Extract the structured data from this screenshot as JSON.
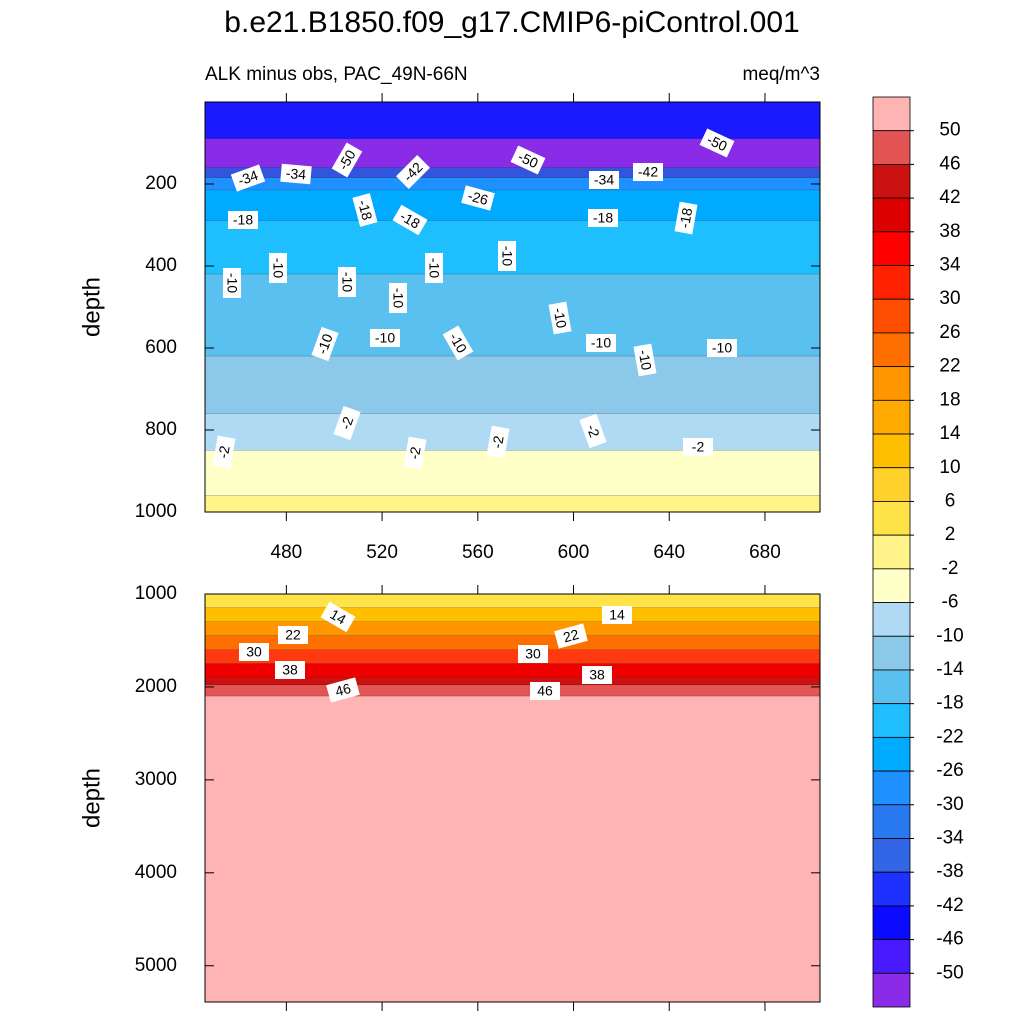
{
  "title": "b.e21.B1850.f09_g17.CMIP6-piControl.001",
  "chart_data": [
    {
      "type": "contour",
      "subtitle_left": "ALK minus obs, PAC_49N-66N",
      "subtitle_right": "meq/m^3",
      "ylabel": "depth",
      "xlim": [
        446,
        703
      ],
      "xticks": [
        480,
        520,
        560,
        600,
        640,
        680
      ],
      "x_tick_labels": true,
      "ylim": [
        1000,
        0
      ],
      "yticks": [
        200,
        400,
        600,
        800,
        1000
      ],
      "bands": [
        {
          "top": 0,
          "bottom": 90,
          "color": "#1a1aff"
        },
        {
          "top": 90,
          "bottom": 160,
          "color": "#8a2be8"
        },
        {
          "top": 160,
          "bottom": 185,
          "color": "#3355dd"
        },
        {
          "top": 185,
          "bottom": 215,
          "color": "#1e90ff"
        },
        {
          "top": 215,
          "bottom": 290,
          "color": "#00aaff"
        },
        {
          "top": 290,
          "bottom": 420,
          "color": "#1ebeff"
        },
        {
          "top": 420,
          "bottom": 620,
          "color": "#5ac0f0"
        },
        {
          "top": 620,
          "bottom": 760,
          "color": "#8cc8ea"
        },
        {
          "top": 760,
          "bottom": 850,
          "color": "#b0daf4"
        },
        {
          "top": 850,
          "bottom": 960,
          "color": "#ffffc8"
        },
        {
          "top": 960,
          "bottom": 1000,
          "color": "#fff38a"
        }
      ],
      "contour_labels": [
        -34,
        -34,
        -50,
        -42,
        -50,
        -34,
        -42,
        -50,
        -18,
        -18,
        -18,
        -26,
        -18,
        -18,
        -10,
        -10,
        -10,
        -10,
        -10,
        -10,
        -10,
        -10,
        -10,
        -10,
        -10,
        -10,
        -10,
        -2,
        -2,
        -2,
        -2,
        -2,
        -2
      ]
    },
    {
      "type": "contour",
      "ylabel": "depth",
      "xlim": [
        446,
        703
      ],
      "xticks": [
        480,
        520,
        560,
        600,
        640,
        680
      ],
      "x_tick_labels": false,
      "ylim": [
        5390,
        1000
      ],
      "yticks": [
        1000,
        2000,
        3000,
        4000,
        5000
      ],
      "bands": [
        {
          "top": 1000,
          "bottom": 1150,
          "color": "#ffe347"
        },
        {
          "top": 1150,
          "bottom": 1300,
          "color": "#ffbe00"
        },
        {
          "top": 1300,
          "bottom": 1450,
          "color": "#ff9600"
        },
        {
          "top": 1450,
          "bottom": 1600,
          "color": "#ff6f00"
        },
        {
          "top": 1600,
          "bottom": 1750,
          "color": "#ff3a10"
        },
        {
          "top": 1750,
          "bottom": 1900,
          "color": "#ee0000"
        },
        {
          "top": 1900,
          "bottom": 1980,
          "color": "#cc1111"
        },
        {
          "top": 1980,
          "bottom": 2100,
          "color": "#e35454"
        },
        {
          "top": 2100,
          "bottom": 5390,
          "color": "#ffb4b4"
        }
      ],
      "contour_labels": [
        14,
        22,
        30,
        38,
        46,
        14,
        22,
        30,
        38,
        46
      ]
    }
  ],
  "colorbar": {
    "levels": [
      50,
      46,
      42,
      38,
      34,
      30,
      26,
      22,
      18,
      14,
      10,
      6,
      2,
      -2,
      -6,
      -10,
      -14,
      -18,
      -22,
      -26,
      -30,
      -34,
      -38,
      -42,
      -46,
      -50
    ],
    "colors": [
      "#ffb4b4",
      "#e35454",
      "#cc1111",
      "#dd0000",
      "#ff0000",
      "#ff2200",
      "#ff4d00",
      "#ff6f00",
      "#ff9600",
      "#ffaa00",
      "#ffbe00",
      "#ffd12a",
      "#ffe347",
      "#fff38a",
      "#ffffc8",
      "#b0daf4",
      "#8cc8ea",
      "#5ac0f0",
      "#1ebeff",
      "#00aaff",
      "#1e90ff",
      "#2878f0",
      "#3366e6",
      "#1e32ff",
      "#0a0aff",
      "#4a1aff",
      "#8a2be8"
    ]
  }
}
